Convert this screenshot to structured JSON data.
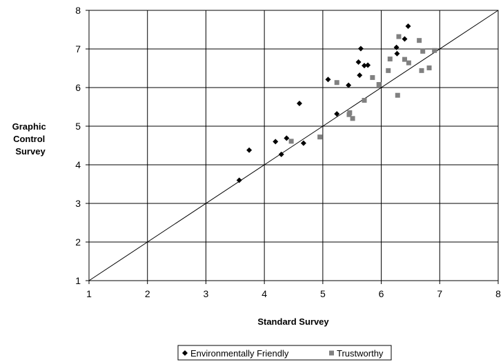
{
  "chart_data": {
    "type": "scatter",
    "title": "",
    "xlabel": "Standard Survey",
    "ylabel": [
      "Graphic",
      "Control",
      "Survey"
    ],
    "xlim": [
      1,
      8
    ],
    "ylim": [
      1,
      8
    ],
    "xticks": [
      "1",
      "2",
      "3",
      "4",
      "5",
      "6",
      "7",
      "8"
    ],
    "yticks": [
      "1",
      "2",
      "3",
      "4",
      "5",
      "6",
      "7",
      "8"
    ],
    "grid": "vertical and horizontal major gridlines",
    "legend_position": "bottom",
    "reference_line": {
      "from": [
        1,
        1
      ],
      "to": [
        8,
        8
      ]
    },
    "series": [
      {
        "name": "Environmentally Friendly",
        "marker": "diamond",
        "color": "#000000",
        "points": [
          [
            3.57,
            3.6
          ],
          [
            3.74,
            4.38
          ],
          [
            4.19,
            4.6
          ],
          [
            4.29,
            4.27
          ],
          [
            4.38,
            4.69
          ],
          [
            4.6,
            5.59
          ],
          [
            4.67,
            4.56
          ],
          [
            5.09,
            6.21
          ],
          [
            5.24,
            5.32
          ],
          [
            5.44,
            6.06
          ],
          [
            5.61,
            6.66
          ],
          [
            5.63,
            6.32
          ],
          [
            5.65,
            7.01
          ],
          [
            5.71,
            6.57
          ],
          [
            5.77,
            6.58
          ],
          [
            6.26,
            7.04
          ],
          [
            6.27,
            6.88
          ],
          [
            6.4,
            7.26
          ],
          [
            6.46,
            7.59
          ]
        ]
      },
      {
        "name": "Trustworthy",
        "marker": "square",
        "color": "#808080",
        "points": [
          [
            4.46,
            4.61
          ],
          [
            4.95,
            4.72
          ],
          [
            5.24,
            6.13
          ],
          [
            5.45,
            5.3
          ],
          [
            5.46,
            5.35
          ],
          [
            5.51,
            5.2
          ],
          [
            5.71,
            5.67
          ],
          [
            5.85,
            6.26
          ],
          [
            5.96,
            6.08
          ],
          [
            6.12,
            6.44
          ],
          [
            6.15,
            6.74
          ],
          [
            6.28,
            5.8
          ],
          [
            6.3,
            7.32
          ],
          [
            6.4,
            6.73
          ],
          [
            6.47,
            6.64
          ],
          [
            6.65,
            7.22
          ],
          [
            6.69,
            6.44
          ],
          [
            6.71,
            6.94
          ],
          [
            6.82,
            6.51
          ],
          [
            6.91,
            6.96
          ]
        ]
      }
    ]
  }
}
